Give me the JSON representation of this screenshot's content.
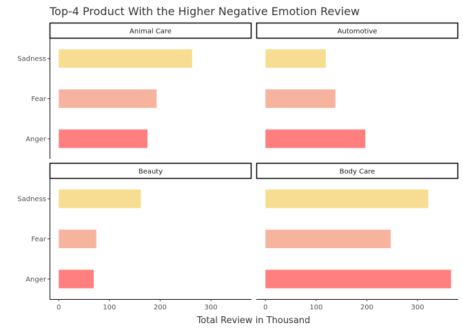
{
  "chart_data": {
    "type": "bar",
    "orientation": "horizontal",
    "title": "Top-4 Product With the Higher Negative Emotion Review",
    "xlabel": "Total Review in Thousand",
    "ylabel": "",
    "categories": [
      "Sadness",
      "Fear",
      "Anger"
    ],
    "category_colors": {
      "Sadness": "#F7DD91",
      "Fear": "#F6B49E",
      "Anger": "#FF7F7F"
    },
    "x_ticks": [
      0,
      100,
      200,
      300
    ],
    "xlim": [
      -18,
      380
    ],
    "grid": false,
    "legend": "none",
    "panels": [
      {
        "name": "Animal Care",
        "values": {
          "Sadness": 263,
          "Fear": 193,
          "Anger": 175
        }
      },
      {
        "name": "Automotive",
        "values": {
          "Sadness": 119,
          "Fear": 138,
          "Anger": 197
        }
      },
      {
        "name": "Beauty",
        "values": {
          "Sadness": 162,
          "Fear": 74,
          "Anger": 69
        }
      },
      {
        "name": "Body Care",
        "values": {
          "Sadness": 321,
          "Fear": 247,
          "Anger": 366
        }
      }
    ]
  }
}
